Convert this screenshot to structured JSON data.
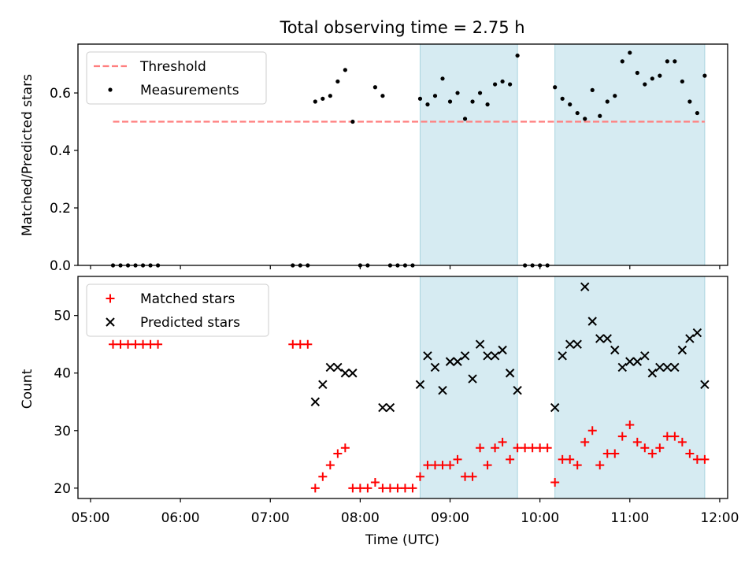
{
  "chart_data": [
    {
      "type": "scatter",
      "title": "Total observing time = 2.75 h",
      "xlabel": "",
      "ylabel": "Matched/Predicted stars",
      "xlim": [
        "05:00",
        "12:00"
      ],
      "ylim": [
        0.0,
        0.77
      ],
      "yticks": [
        "0.0",
        "0.2",
        "0.4",
        "0.6"
      ],
      "legend": {
        "position": "top-left",
        "entries": [
          "Threshold",
          "Measurements"
        ]
      },
      "shaded_intervals": [
        [
          "08:40",
          "09:45"
        ],
        [
          "10:10",
          "11:50"
        ]
      ],
      "series": [
        {
          "name": "Threshold",
          "style": "dashed-line",
          "color": "#ff7f7f",
          "x": [
            "05:15",
            "11:50"
          ],
          "values": [
            0.5,
            0.5
          ]
        },
        {
          "name": "Measurements",
          "style": "dot",
          "color": "#000000",
          "x": [
            "05:15",
            "05:20",
            "05:25",
            "05:30",
            "05:35",
            "05:40",
            "05:45",
            "07:15",
            "07:20",
            "07:25",
            "07:30",
            "07:35",
            "07:40",
            "07:45",
            "07:50",
            "07:55",
            "08:00",
            "08:05",
            "08:10",
            "08:15",
            "08:20",
            "08:25",
            "08:30",
            "08:35",
            "08:40",
            "08:45",
            "08:50",
            "08:55",
            "09:00",
            "09:05",
            "09:10",
            "09:15",
            "09:20",
            "09:25",
            "09:30",
            "09:35",
            "09:40",
            "09:45",
            "09:50",
            "09:55",
            "10:00",
            "10:05",
            "10:10",
            "10:15",
            "10:20",
            "10:25",
            "10:30",
            "10:35",
            "10:40",
            "10:45",
            "10:50",
            "10:55",
            "11:00",
            "11:05",
            "11:10",
            "11:15",
            "11:20",
            "11:25",
            "11:30",
            "11:35",
            "11:40",
            "11:45",
            "11:50"
          ],
          "values": [
            0,
            0,
            0,
            0,
            0,
            0,
            0,
            0,
            0,
            0,
            0.57,
            0.58,
            0.59,
            0.64,
            0.68,
            0.5,
            0,
            0,
            0.62,
            0.59,
            0,
            0,
            0,
            0,
            0.58,
            0.56,
            0.59,
            0.65,
            0.57,
            0.6,
            0.51,
            0.57,
            0.6,
            0.56,
            0.63,
            0.64,
            0.63,
            0.73,
            0,
            0,
            0,
            0,
            0.62,
            0.58,
            0.56,
            0.53,
            0.51,
            0.61,
            0.52,
            0.57,
            0.59,
            0.71,
            0.74,
            0.67,
            0.63,
            0.65,
            0.66,
            0.71,
            0.71,
            0.64,
            0.57,
            0.53,
            0.66
          ]
        }
      ]
    },
    {
      "type": "scatter",
      "title": "",
      "xlabel": "Time (UTC)",
      "ylabel": "Count",
      "xlim": [
        "05:00",
        "12:00"
      ],
      "xticks": [
        "05:00",
        "06:00",
        "07:00",
        "08:00",
        "09:00",
        "10:00",
        "11:00",
        "12:00"
      ],
      "ylim": [
        18.2,
        56.8
      ],
      "yticks": [
        "20",
        "30",
        "40",
        "50"
      ],
      "legend": {
        "position": "top-left",
        "entries": [
          "Matched stars",
          "Predicted stars"
        ]
      },
      "shaded_intervals": [
        [
          "08:40",
          "09:45"
        ],
        [
          "10:10",
          "11:50"
        ]
      ],
      "series": [
        {
          "name": "Matched stars",
          "marker": "plus",
          "color": "#ff0000",
          "x": [
            "05:15",
            "05:20",
            "05:25",
            "05:30",
            "05:35",
            "05:40",
            "05:45",
            "07:15",
            "07:20",
            "07:25",
            "07:30",
            "07:35",
            "07:40",
            "07:45",
            "07:50",
            "07:55",
            "08:00",
            "08:05",
            "08:10",
            "08:15",
            "08:20",
            "08:25",
            "08:30",
            "08:35",
            "08:40",
            "08:45",
            "08:50",
            "08:55",
            "09:00",
            "09:05",
            "09:10",
            "09:15",
            "09:20",
            "09:25",
            "09:30",
            "09:35",
            "09:40",
            "09:45",
            "09:50",
            "09:55",
            "10:00",
            "10:05",
            "10:10",
            "10:15",
            "10:20",
            "10:25",
            "10:30",
            "10:35",
            "10:40",
            "10:45",
            "10:50",
            "10:55",
            "11:00",
            "11:05",
            "11:10",
            "11:15",
            "11:20",
            "11:25",
            "11:30",
            "11:35",
            "11:40",
            "11:45",
            "11:50"
          ],
          "values": [
            45,
            45,
            45,
            45,
            45,
            45,
            45,
            45,
            45,
            45,
            20,
            22,
            24,
            26,
            27,
            20,
            20,
            20,
            21,
            20,
            20,
            20,
            20,
            20,
            22,
            24,
            24,
            24,
            24,
            25,
            22,
            22,
            27,
            24,
            27,
            28,
            25,
            27,
            27,
            27,
            27,
            27,
            21,
            25,
            25,
            24,
            28,
            30,
            24,
            26,
            26,
            29,
            31,
            28,
            27,
            26,
            27,
            29,
            29,
            28,
            26,
            25,
            25
          ]
        },
        {
          "name": "Predicted stars",
          "marker": "x",
          "color": "#000000",
          "x": [
            "07:30",
            "07:35",
            "07:40",
            "07:45",
            "07:50",
            "07:55",
            "08:15",
            "08:20",
            "08:40",
            "08:45",
            "08:50",
            "08:55",
            "09:00",
            "09:05",
            "09:10",
            "09:15",
            "09:20",
            "09:25",
            "09:30",
            "09:35",
            "09:40",
            "09:45",
            "09:50",
            "10:10",
            "10:15",
            "10:20",
            "10:25",
            "10:30",
            "10:35",
            "10:40",
            "10:45",
            "10:50",
            "10:55",
            "11:00",
            "11:05",
            "11:10",
            "11:15",
            "11:20",
            "11:25",
            "11:30",
            "11:35",
            "11:40",
            "11:45",
            "11:50"
          ],
          "values": [
            35,
            38,
            41,
            41,
            40,
            40,
            34,
            34,
            38,
            43,
            41,
            37,
            42,
            42,
            43,
            39,
            45,
            43,
            43,
            44,
            40,
            37,
            null,
            34,
            43,
            45,
            45,
            55,
            49,
            46,
            46,
            44,
            41,
            42,
            42,
            43,
            40,
            41,
            41,
            41,
            44,
            46,
            47,
            38
          ]
        }
      ]
    }
  ]
}
